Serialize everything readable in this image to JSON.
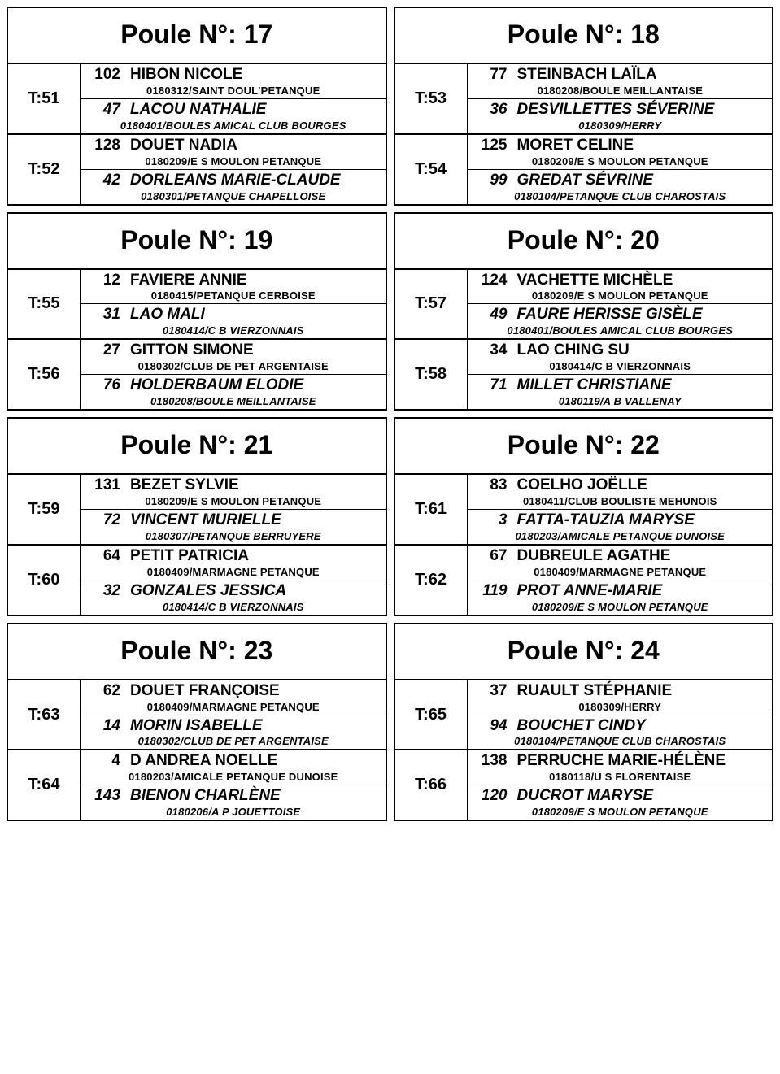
{
  "title_prefix": "Poule N°: ",
  "t_prefix": "T:",
  "poules": [
    {
      "num": "17",
      "matches": [
        {
          "t": "51",
          "p1": {
            "num": "102",
            "name": "HIBON NICOLE",
            "club": "0180312/SAINT DOUL'PETANQUE"
          },
          "p2": {
            "num": "47",
            "name": "LACOU NATHALIE",
            "club": "0180401/BOULES AMICAL CLUB BOURGES"
          }
        },
        {
          "t": "52",
          "p1": {
            "num": "128",
            "name": "DOUET NADIA",
            "club": "0180209/E S  MOULON PETANQUE"
          },
          "p2": {
            "num": "42",
            "name": "DORLEANS MARIE-CLAUDE",
            "club": "0180301/PETANQUE CHAPELLOISE"
          }
        }
      ]
    },
    {
      "num": "18",
      "matches": [
        {
          "t": "53",
          "p1": {
            "num": "77",
            "name": "STEINBACH LAÏLA",
            "club": "0180208/BOULE MEILLANTAISE"
          },
          "p2": {
            "num": "36",
            "name": "DESVILLETTES SÉVERINE",
            "club": "0180309/HERRY"
          }
        },
        {
          "t": "54",
          "p1": {
            "num": "125",
            "name": "MORET CELINE",
            "club": "0180209/E S  MOULON PETANQUE"
          },
          "p2": {
            "num": "99",
            "name": "GREDAT SÉVRINE",
            "club": "0180104/PETANQUE CLUB CHAROSTAIS"
          }
        }
      ]
    },
    {
      "num": "19",
      "matches": [
        {
          "t": "55",
          "p1": {
            "num": "12",
            "name": "FAVIERE ANNIE",
            "club": "0180415/PETANQUE CERBOISE"
          },
          "p2": {
            "num": "31",
            "name": "LAO MALI",
            "club": "0180414/C B   VIERZONNAIS"
          }
        },
        {
          "t": "56",
          "p1": {
            "num": "27",
            "name": "GITTON SIMONE",
            "club": "0180302/CLUB DE PET  ARGENTAISE"
          },
          "p2": {
            "num": "76",
            "name": "HOLDERBAUM ELODIE",
            "club": "0180208/BOULE MEILLANTAISE"
          }
        }
      ]
    },
    {
      "num": "20",
      "matches": [
        {
          "t": "57",
          "p1": {
            "num": "124",
            "name": "VACHETTE MICHÈLE",
            "club": "0180209/E S  MOULON PETANQUE"
          },
          "p2": {
            "num": "49",
            "name": "FAURE HERISSE GISÈLE",
            "club": "0180401/BOULES AMICAL CLUB BOURGES"
          }
        },
        {
          "t": "58",
          "p1": {
            "num": "34",
            "name": "LAO CHING SU",
            "club": "0180414/C B   VIERZONNAIS"
          },
          "p2": {
            "num": "71",
            "name": "MILLET CHRISTIANE",
            "club": "0180119/A B  VALLENAY"
          }
        }
      ]
    },
    {
      "num": "21",
      "matches": [
        {
          "t": "59",
          "p1": {
            "num": "131",
            "name": "BEZET SYLVIE",
            "club": "0180209/E S  MOULON PETANQUE"
          },
          "p2": {
            "num": "72",
            "name": "VINCENT MURIELLE",
            "club": "0180307/PETANQUE BERRUYERE"
          }
        },
        {
          "t": "60",
          "p1": {
            "num": "64",
            "name": "PETIT PATRICIA",
            "club": "0180409/MARMAGNE PETANQUE"
          },
          "p2": {
            "num": "32",
            "name": "GONZALES JESSICA",
            "club": "0180414/C B   VIERZONNAIS"
          }
        }
      ]
    },
    {
      "num": "22",
      "matches": [
        {
          "t": "61",
          "p1": {
            "num": "83",
            "name": "COELHO JOËLLE",
            "club": "0180411/CLUB BOULISTE MEHUNOIS"
          },
          "p2": {
            "num": "3",
            "name": "FATTA-TAUZIA MARYSE",
            "club": "0180203/AMICALE PETANQUE DUNOISE"
          }
        },
        {
          "t": "62",
          "p1": {
            "num": "67",
            "name": "DUBREULE AGATHE",
            "club": "0180409/MARMAGNE PETANQUE"
          },
          "p2": {
            "num": "119",
            "name": "PROT ANNE-MARIE",
            "club": "0180209/E S  MOULON PETANQUE"
          }
        }
      ]
    },
    {
      "num": "23",
      "matches": [
        {
          "t": "63",
          "p1": {
            "num": "62",
            "name": "DOUET FRANÇOISE",
            "club": "0180409/MARMAGNE PETANQUE"
          },
          "p2": {
            "num": "14",
            "name": "MORIN ISABELLE",
            "club": "0180302/CLUB DE PET  ARGENTAISE"
          }
        },
        {
          "t": "64",
          "p1": {
            "num": "4",
            "name": "D ANDREA NOELLE",
            "club": "0180203/AMICALE PETANQUE DUNOISE"
          },
          "p2": {
            "num": "143",
            "name": "BIENON CHARLÈNE",
            "club": "0180206/A  P JOUETTOISE"
          }
        }
      ]
    },
    {
      "num": "24",
      "matches": [
        {
          "t": "65",
          "p1": {
            "num": "37",
            "name": "RUAULT STÉPHANIE",
            "club": "0180309/HERRY"
          },
          "p2": {
            "num": "94",
            "name": "BOUCHET CINDY",
            "club": "0180104/PETANQUE CLUB CHAROSTAIS"
          }
        },
        {
          "t": "66",
          "p1": {
            "num": "138",
            "name": "PERRUCHE MARIE-HÉLÈNE",
            "club": "0180118/U  S FLORENTAISE"
          },
          "p2": {
            "num": "120",
            "name": "DUCROT MARYSE",
            "club": "0180209/E S  MOULON PETANQUE"
          }
        }
      ]
    }
  ]
}
